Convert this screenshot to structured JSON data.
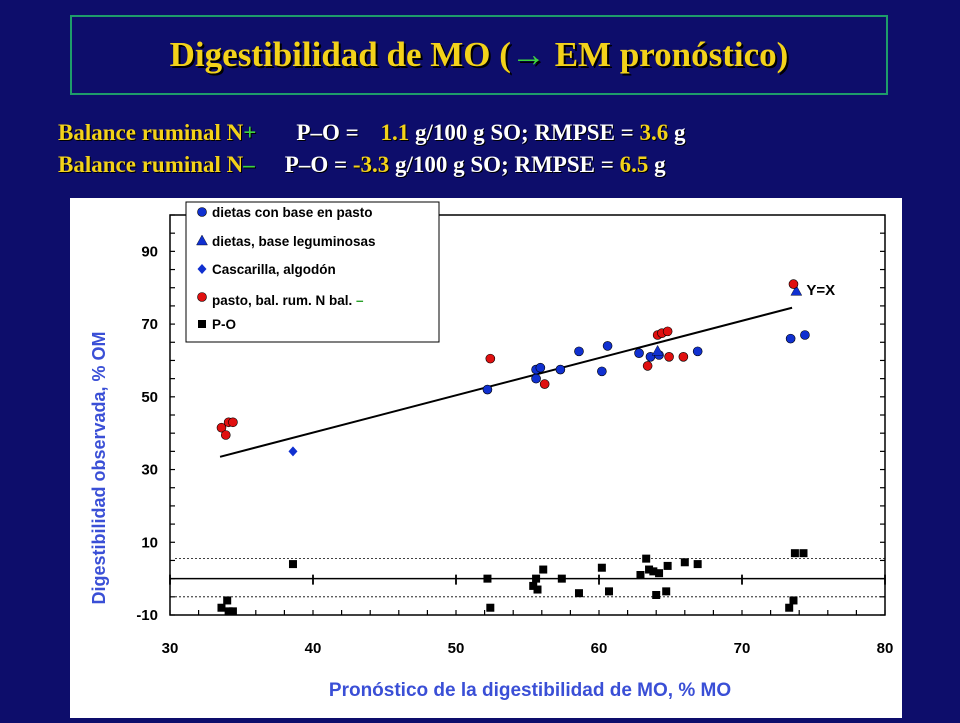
{
  "header": {
    "title_pre": "Digestibilidad de MO (",
    "title_arrow": "→",
    "title_post": " EM pronóstico)"
  },
  "stats": [
    {
      "label": "Balance ruminal N",
      "sign": "+",
      "text1": "P–O = ",
      "value1": "1.1",
      "text2": " g/100 g SO;  RMPSE = ",
      "value2": "3.6",
      "text3": " g"
    },
    {
      "label": "Balance ruminal N",
      "sign": "–",
      "text1": "P–O = ",
      "value1": "-3.3",
      "text2": " g/100 g SO;  RMPSE = ",
      "value2": "6.5",
      "text3": " g"
    }
  ],
  "colors": {
    "background": "#0d0d6b",
    "title": "#f3d21a",
    "accent_green": "#3fd43f",
    "axis_label": "#3a4fd6",
    "blue_series": "#1030d0",
    "red_series": "#e01010",
    "black_series": "#000000"
  },
  "chart_data": {
    "type": "scatter",
    "xlabel": "Pronóstico de la digestibilidad de MO, % MO",
    "ylabel": "Digestibilidad observada, % OM",
    "xlim": [
      30,
      80
    ],
    "ylim": [
      -10,
      100
    ],
    "x_ticks": [
      "30",
      "40",
      "50",
      "60",
      "70",
      "80"
    ],
    "y_ticks": [
      "-10",
      "10",
      "30",
      "50",
      "70",
      "90"
    ],
    "line_label": "Y=X",
    "legend_position": "top-left",
    "line": {
      "x": [
        33.5,
        73.5
      ],
      "y": [
        33.5,
        74.5
      ]
    },
    "series": [
      {
        "name": "dietas con base en pasto",
        "marker": "circle",
        "color": "#1030d0",
        "points": [
          [
            52.2,
            52
          ],
          [
            55.6,
            55
          ],
          [
            55.6,
            57.5
          ],
          [
            55.9,
            58
          ],
          [
            57.3,
            57.5
          ],
          [
            58.6,
            62.5
          ],
          [
            60.2,
            57
          ],
          [
            60.6,
            64
          ],
          [
            62.8,
            62
          ],
          [
            63.6,
            61
          ],
          [
            64.2,
            61.5
          ],
          [
            66.9,
            62.5
          ],
          [
            73.4,
            66
          ],
          [
            74.4,
            67
          ]
        ]
      },
      {
        "name": "dietas, base leguminosas",
        "marker": "triangle",
        "color": "#1030d0",
        "points": [
          [
            73.8,
            79
          ],
          [
            64.1,
            62.5
          ]
        ]
      },
      {
        "name": "Cascarilla, algodón",
        "marker": "diamond",
        "color": "#1030d0",
        "points": [
          [
            38.6,
            35
          ]
        ]
      },
      {
        "name": "pasto, bal. rum. N bal. –",
        "marker": "circle",
        "color": "#e01010",
        "points": [
          [
            33.6,
            41.5
          ],
          [
            33.9,
            39.5
          ],
          [
            34.1,
            43
          ],
          [
            34.4,
            43
          ],
          [
            52.4,
            60.5
          ],
          [
            56.2,
            53.5
          ],
          [
            63.4,
            58.5
          ],
          [
            64.1,
            67
          ],
          [
            64.4,
            67.5
          ],
          [
            64.8,
            68
          ],
          [
            64.9,
            61
          ],
          [
            65.9,
            61
          ],
          [
            73.6,
            81
          ]
        ]
      },
      {
        "name": "P-O",
        "marker": "square",
        "color": "#000000",
        "points": [
          [
            33.6,
            -8
          ],
          [
            34.0,
            -6
          ],
          [
            34.1,
            -9
          ],
          [
            34.4,
            -9
          ],
          [
            38.6,
            4
          ],
          [
            52.2,
            0
          ],
          [
            52.4,
            -8
          ],
          [
            55.4,
            -2
          ],
          [
            55.6,
            0
          ],
          [
            55.7,
            -3
          ],
          [
            56.1,
            2.5
          ],
          [
            57.4,
            0
          ],
          [
            58.6,
            -4
          ],
          [
            60.2,
            3
          ],
          [
            60.7,
            -3.5
          ],
          [
            62.9,
            1
          ],
          [
            63.3,
            5.5
          ],
          [
            63.5,
            2.5
          ],
          [
            63.8,
            2
          ],
          [
            64.0,
            -4.5
          ],
          [
            64.2,
            1.5
          ],
          [
            64.7,
            -3.5
          ],
          [
            64.8,
            3.5
          ],
          [
            66.0,
            4.5
          ],
          [
            66.9,
            4
          ],
          [
            73.3,
            -8
          ],
          [
            73.6,
            -6
          ],
          [
            73.7,
            7
          ],
          [
            74.3,
            7
          ]
        ]
      }
    ]
  }
}
